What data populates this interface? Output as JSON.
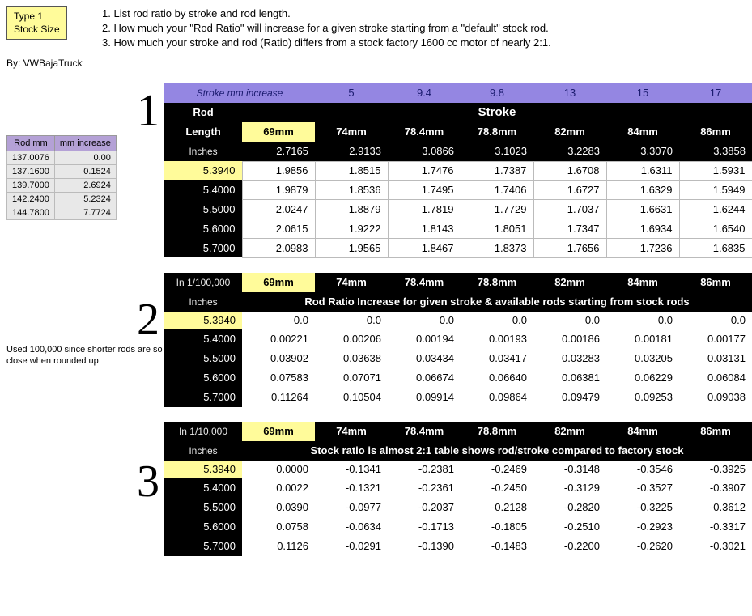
{
  "header": {
    "box_line1": "Type 1",
    "box_line2": "Stock Size",
    "desc1": "1. List rod ratio by stroke and rod length.",
    "desc2": "2. How much your \"Rod Ratio\" will increase for a given stroke starting from a \"default\" stock rod.",
    "desc3": "3. How much your stroke and rod (Ratio) differs from a stock factory 1600 cc motor of nearly 2:1.",
    "byline": "By: VWBajaTruck"
  },
  "section1": {
    "num": "1",
    "stroke_inc_label": "Stroke mm increase",
    "stroke_inc": [
      "5",
      "9.4",
      "9.8",
      "13",
      "15",
      "17"
    ],
    "rod_label": "Rod",
    "length_label": "Length",
    "stroke_label": "Stroke",
    "stroke_cols": [
      "69mm",
      "74mm",
      "78.4mm",
      "78.8mm",
      "82mm",
      "84mm",
      "86mm"
    ],
    "inches_label": "Inches",
    "inches_row": [
      "2.7165",
      "2.9133",
      "3.0866",
      "3.1023",
      "3.2283",
      "3.3070",
      "3.3858"
    ],
    "rows": [
      {
        "inch": "5.3940",
        "v": [
          "1.9856",
          "1.8515",
          "1.7476",
          "1.7387",
          "1.6708",
          "1.6311",
          "1.5931"
        ]
      },
      {
        "inch": "5.4000",
        "v": [
          "1.9879",
          "1.8536",
          "1.7495",
          "1.7406",
          "1.6727",
          "1.6329",
          "1.5949"
        ]
      },
      {
        "inch": "5.5000",
        "v": [
          "2.0247",
          "1.8879",
          "1.7819",
          "1.7729",
          "1.7037",
          "1.6631",
          "1.6244"
        ]
      },
      {
        "inch": "5.6000",
        "v": [
          "2.0615",
          "1.9222",
          "1.8143",
          "1.8051",
          "1.7347",
          "1.6934",
          "1.6540"
        ]
      },
      {
        "inch": "5.7000",
        "v": [
          "2.0983",
          "1.9565",
          "1.8467",
          "1.8373",
          "1.7656",
          "1.7236",
          "1.6835"
        ]
      }
    ],
    "left_hdr1": "Rod mm",
    "left_hdr2": "mm increase",
    "left_rows": [
      [
        "137.0076",
        "0.00"
      ],
      [
        "137.1600",
        "0.1524"
      ],
      [
        "139.7000",
        "2.6924"
      ],
      [
        "142.2400",
        "5.2324"
      ],
      [
        "144.7800",
        "7.7724"
      ]
    ]
  },
  "section2": {
    "num": "2",
    "scale_label": "In 1/100,000",
    "cols": [
      "69mm",
      "74mm",
      "78.4mm",
      "78.8mm",
      "82mm",
      "84mm",
      "86mm"
    ],
    "inches_label": "Inches",
    "subtitle": "Rod Ratio Increase for given stroke & available rods starting from stock rods",
    "rows": [
      {
        "inch": "5.3940",
        "v": [
          "0.0",
          "0.0",
          "0.0",
          "0.0",
          "0.0",
          "0.0",
          "0.0"
        ]
      },
      {
        "inch": "5.4000",
        "v": [
          "0.00221",
          "0.00206",
          "0.00194",
          "0.00193",
          "0.00186",
          "0.00181",
          "0.00177"
        ]
      },
      {
        "inch": "5.5000",
        "v": [
          "0.03902",
          "0.03638",
          "0.03434",
          "0.03417",
          "0.03283",
          "0.03205",
          "0.03131"
        ]
      },
      {
        "inch": "5.6000",
        "v": [
          "0.07583",
          "0.07071",
          "0.06674",
          "0.06640",
          "0.06381",
          "0.06229",
          "0.06084"
        ]
      },
      {
        "inch": "5.7000",
        "v": [
          "0.11264",
          "0.10504",
          "0.09914",
          "0.09864",
          "0.09479",
          "0.09253",
          "0.09038"
        ]
      }
    ],
    "left_note": "Used 100,000 since shorter rods are so close when rounded up"
  },
  "section3": {
    "num": "3",
    "scale_label": "In 1/10,000",
    "cols": [
      "69mm",
      "74mm",
      "78.4mm",
      "78.8mm",
      "82mm",
      "84mm",
      "86mm"
    ],
    "inches_label": "Inches",
    "subtitle": "Stock ratio is almost 2:1 table shows rod/stroke compared to factory stock",
    "rows": [
      {
        "inch": "5.3940",
        "v": [
          "0.0000",
          "-0.1341",
          "-0.2381",
          "-0.2469",
          "-0.3148",
          "-0.3546",
          "-0.3925"
        ]
      },
      {
        "inch": "5.4000",
        "v": [
          "0.0022",
          "-0.1321",
          "-0.2361",
          "-0.2450",
          "-0.3129",
          "-0.3527",
          "-0.3907"
        ]
      },
      {
        "inch": "5.5000",
        "v": [
          "0.0390",
          "-0.0977",
          "-0.2037",
          "-0.2128",
          "-0.2820",
          "-0.3225",
          "-0.3612"
        ]
      },
      {
        "inch": "5.6000",
        "v": [
          "0.0758",
          "-0.0634",
          "-0.1713",
          "-0.1805",
          "-0.2510",
          "-0.2923",
          "-0.3317"
        ]
      },
      {
        "inch": "5.7000",
        "v": [
          "0.1126",
          "-0.0291",
          "-0.1390",
          "-0.1483",
          "-0.2200",
          "-0.2620",
          "-0.3021"
        ]
      }
    ]
  },
  "colors": {
    "yellow": "#fffb9a",
    "purple_hdr": "#9486e2",
    "purple_left": "#b4a1d6",
    "black": "#000000"
  }
}
